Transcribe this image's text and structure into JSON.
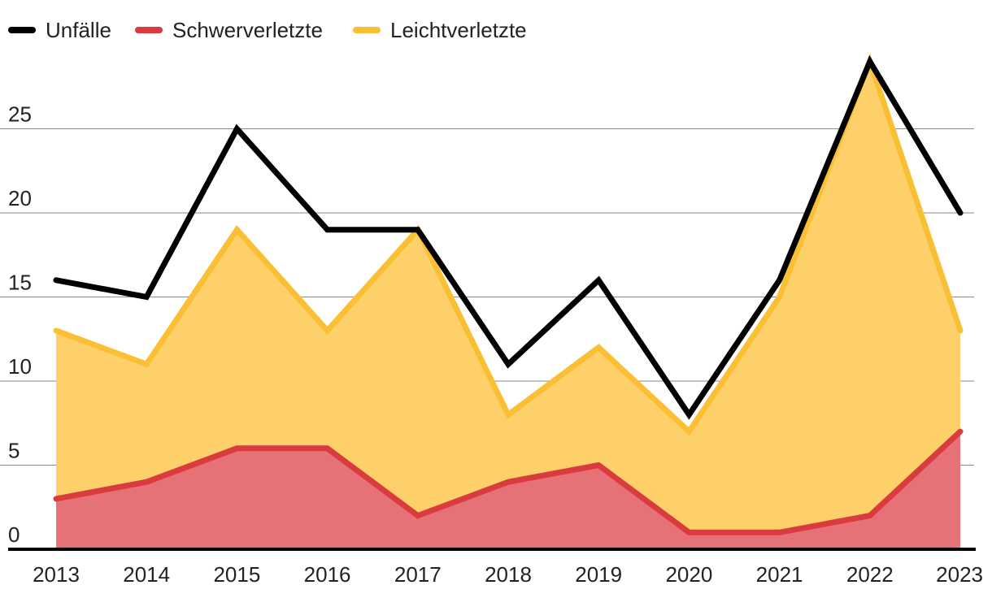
{
  "chart_data": {
    "type": "area",
    "title": "",
    "xlabel": "",
    "ylabel": "",
    "categories": [
      "2013",
      "2014",
      "2015",
      "2016",
      "2017",
      "2018",
      "2019",
      "2020",
      "2021",
      "2022",
      "2023"
    ],
    "ylim": [
      0,
      30
    ],
    "yticks": [
      0,
      5,
      10,
      15,
      20,
      25
    ],
    "grid": true,
    "legend_position": "top-left",
    "series": [
      {
        "name": "Unfälle",
        "color": "#000000",
        "style": "line",
        "values": [
          16,
          15,
          25,
          19,
          19,
          11,
          16,
          8,
          16,
          29,
          20
        ]
      },
      {
        "name": "Schwerverletzte",
        "color": "#d93b3f",
        "fill": "#e67176",
        "style": "area",
        "values": [
          3,
          4,
          6,
          6,
          2,
          4,
          5,
          1,
          1,
          2,
          7
        ]
      },
      {
        "name": "Leichtverletzte",
        "color": "#fbbf33",
        "fill": "#fdd06a",
        "style": "area",
        "values": [
          13,
          11,
          19,
          13,
          19,
          8,
          12,
          7,
          15,
          29,
          13
        ]
      }
    ]
  }
}
